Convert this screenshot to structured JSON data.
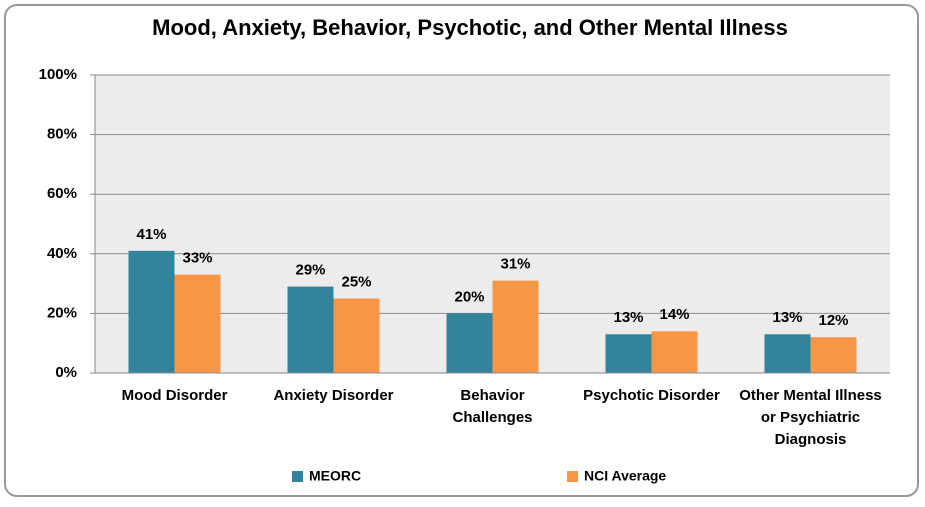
{
  "chart_data": {
    "type": "bar",
    "title": "Mood, Anxiety, Behavior, Psychotic, and Other Mental Illness",
    "categories": [
      "Mood Disorder",
      "Anxiety Disorder",
      "Behavior Challenges",
      "Psychotic Disorder",
      "Other Mental Illness or Psychiatric Diagnosis"
    ],
    "series": [
      {
        "name": "MEORC",
        "color": "#31849b",
        "values": [
          41,
          29,
          20,
          13,
          13
        ],
        "value_labels": [
          "41%",
          "29%",
          "20%",
          "13%",
          "13%"
        ]
      },
      {
        "name": "NCI Average",
        "color": "#f79646",
        "values": [
          33,
          25,
          31,
          14,
          12
        ],
        "value_labels": [
          "33%",
          "25%",
          "31%",
          "14%",
          "12%"
        ]
      }
    ],
    "ylim": [
      0,
      100
    ],
    "yticks": [
      {
        "value": 0,
        "label": "0%"
      },
      {
        "value": 20,
        "label": "20%"
      },
      {
        "value": 40,
        "label": "40%"
      },
      {
        "value": 60,
        "label": "60%"
      },
      {
        "value": 80,
        "label": "80%"
      },
      {
        "value": 100,
        "label": "100%"
      }
    ],
    "grid": true,
    "legend": "bottom"
  }
}
